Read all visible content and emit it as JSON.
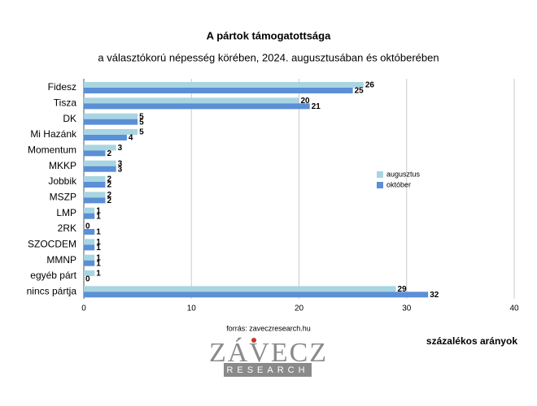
{
  "chart_data": {
    "type": "bar",
    "orientation": "horizontal",
    "title": "A pártok támogatottsága",
    "subtitle": "a választókorú népesség körében, 2024. augusztusában és októberében",
    "categories": [
      "Fidesz",
      "Tisza",
      "DK",
      "Mi Hazánk",
      "Momentum",
      "MKKP",
      "Jobbik",
      "MSZP",
      "LMP",
      "2RK",
      "SZOCDEM",
      "MMNP",
      "egyéb párt",
      "nincs pártja"
    ],
    "series": [
      {
        "name": "augusztus",
        "color": "#a8d5e2",
        "values": [
          26,
          20,
          5,
          5,
          3,
          3,
          2,
          2,
          1,
          0,
          1,
          1,
          1,
          29
        ]
      },
      {
        "name": "október",
        "color": "#5b8fd6",
        "values": [
          25,
          21,
          5,
          4,
          2,
          3,
          2,
          2,
          1,
          1,
          1,
          1,
          0,
          32
        ]
      }
    ],
    "xlim": [
      0,
      40
    ],
    "xticks": [
      0,
      10,
      20,
      30,
      40
    ],
    "grid": true,
    "legend": "right",
    "source": "forrás: zaveczresearch.hu",
    "unit_note": "százalékos arányok"
  },
  "logo": {
    "name": "ZÁVECZ",
    "tagline": "RESEARCH"
  }
}
